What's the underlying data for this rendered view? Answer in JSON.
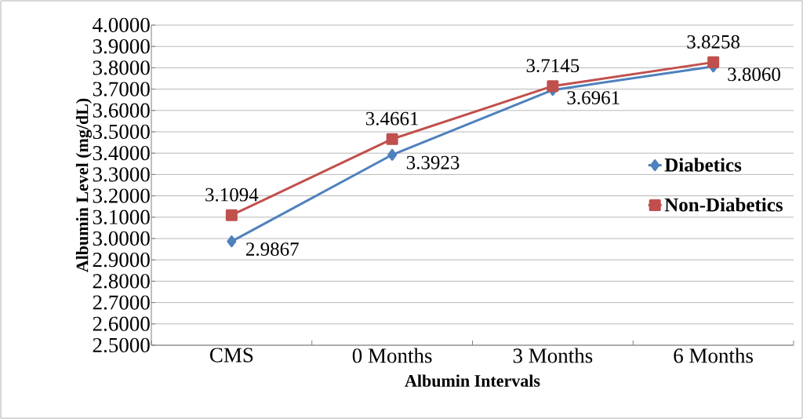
{
  "chart_data": {
    "type": "line",
    "xlabel": "Albumin Intervals",
    "ylabel": "Albumin Level  (mg/dL)",
    "categories": [
      "CMS",
      "0 Months",
      "3 Months",
      "6 Months"
    ],
    "series": [
      {
        "name": "Diabetics",
        "color": "#4f81bd",
        "marker": "diamond",
        "values": [
          2.9867,
          3.3923,
          3.6961,
          3.806
        ],
        "value_labels": [
          "2.9867",
          "3.3923",
          "3.6961",
          "3.8060"
        ]
      },
      {
        "name": "Non-Diabetics",
        "color": "#c0504d",
        "marker": "square",
        "values": [
          3.1094,
          3.4661,
          3.7145,
          3.8258
        ],
        "value_labels": [
          "3.1094",
          "3.4661",
          "3.7145",
          "3.8258"
        ]
      }
    ],
    "ylim": [
      2.5,
      4.0
    ],
    "yticks": [
      {
        "value": 2.5,
        "label": "2.5000"
      },
      {
        "value": 2.6,
        "label": "2.6000"
      },
      {
        "value": 2.7,
        "label": "2.7000"
      },
      {
        "value": 2.8,
        "label": "2.8000"
      },
      {
        "value": 2.9,
        "label": "2.9000"
      },
      {
        "value": 3.0,
        "label": "3.0000"
      },
      {
        "value": 3.1,
        "label": "3.1000"
      },
      {
        "value": 3.2,
        "label": "3.2000"
      },
      {
        "value": 3.3,
        "label": "3.3000"
      },
      {
        "value": 3.4,
        "label": "3.4000"
      },
      {
        "value": 3.5,
        "label": "3.5000"
      },
      {
        "value": 3.6,
        "label": "3.6000"
      },
      {
        "value": 3.7,
        "label": "3.7000"
      },
      {
        "value": 3.8,
        "label": "3.8000"
      },
      {
        "value": 3.9,
        "label": "3.9000"
      },
      {
        "value": 4.0,
        "label": "4.0000"
      }
    ],
    "grid": "y",
    "legend": "right",
    "line_style": "solid"
  }
}
